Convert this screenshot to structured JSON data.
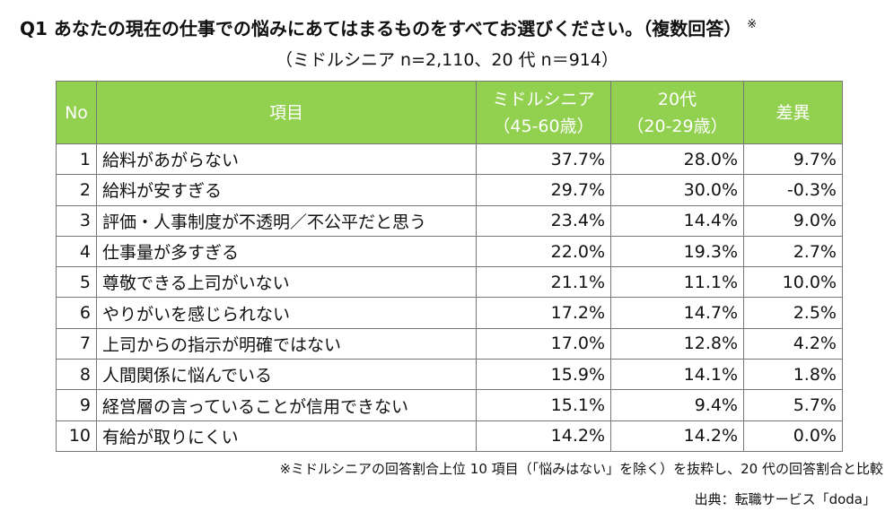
{
  "header": {
    "title": "Q1 あなたの現在の仕事での悩みにあてはまるものをすべてお選びください。（複数回答）",
    "title_mark": "※",
    "subtitle": "（ミドルシニア n=2,110、20 代 n＝914）"
  },
  "table": {
    "header": [
      [
        "No"
      ],
      [
        "項目"
      ],
      [
        "ミドルシニア",
        "（45-60歳）"
      ],
      [
        "20代",
        "（20-29歳）"
      ],
      [
        "差異"
      ]
    ],
    "rows": [
      [
        "1",
        "給料があがらない",
        "37.7%",
        "28.0%",
        "9.7%"
      ],
      [
        "2",
        "給料が安すぎる",
        "29.7%",
        "30.0%",
        "-0.3%"
      ],
      [
        "3",
        "評価・人事制度が不透明／不公平だと思う",
        "23.4%",
        "14.4%",
        "9.0%"
      ],
      [
        "4",
        "仕事量が多すぎる",
        "22.0%",
        "19.3%",
        "2.7%"
      ],
      [
        "5",
        "尊敬できる上司がいない",
        "21.1%",
        "11.1%",
        "10.0%"
      ],
      [
        "6",
        "やりがいを感じられない",
        "17.2%",
        "14.7%",
        "2.5%"
      ],
      [
        "7",
        "上司からの指示が明確ではない",
        "17.0%",
        "12.8%",
        "4.2%"
      ],
      [
        "8",
        "人間関係に悩んでいる",
        "15.9%",
        "14.1%",
        "1.8%"
      ],
      [
        "9",
        "経営層の言っていることが信用できない",
        "15.1%",
        "9.4%",
        "5.7%"
      ],
      [
        "10",
        "有給が取りにくい",
        "14.2%",
        "14.2%",
        "0.0%"
      ]
    ]
  },
  "footer": {
    "note": "※ミドルシニアの回答割合上位 10 項目（「悩みはない」を除く）を抜粋し、20 代の回答割合と比較",
    "source": "出典：転職サービス「doda」"
  }
}
